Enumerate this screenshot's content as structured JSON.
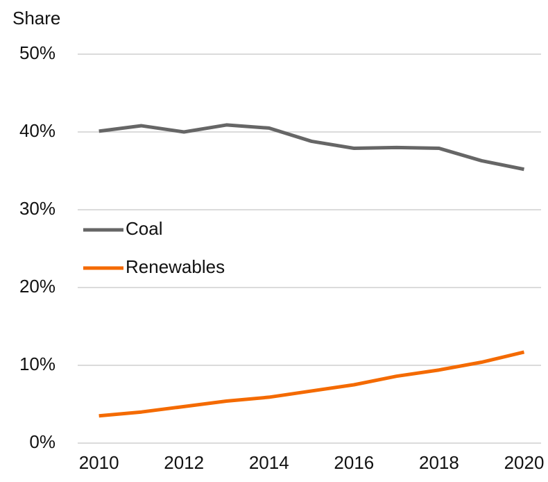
{
  "chart_data": {
    "type": "line",
    "y_label": "Share",
    "x": [
      2010,
      2011,
      2012,
      2013,
      2014,
      2015,
      2016,
      2017,
      2018,
      2019,
      2020
    ],
    "series": [
      {
        "name": "Coal",
        "color": "#666666",
        "values": [
          40.1,
          40.8,
          40.0,
          40.9,
          40.5,
          38.8,
          37.9,
          38.0,
          37.9,
          36.3,
          35.2
        ]
      },
      {
        "name": "Renewables",
        "color": "#f46a00",
        "values": [
          3.5,
          4.0,
          4.7,
          5.4,
          5.9,
          6.7,
          7.5,
          8.6,
          9.4,
          10.4,
          11.7
        ]
      }
    ],
    "xlim": [
      2009.5,
      2020.4
    ],
    "xticks": [
      2010,
      2012,
      2014,
      2016,
      2018,
      2020
    ],
    "ylim": [
      0,
      50
    ],
    "yticks": [
      {
        "value": 0,
        "label": "0%"
      },
      {
        "value": 10,
        "label": "10%"
      },
      {
        "value": 20,
        "label": "20%"
      },
      {
        "value": 30,
        "label": "30%"
      },
      {
        "value": 40,
        "label": "40%"
      },
      {
        "value": 50,
        "label": "50%"
      }
    ],
    "grid": true,
    "legend": "center left"
  }
}
